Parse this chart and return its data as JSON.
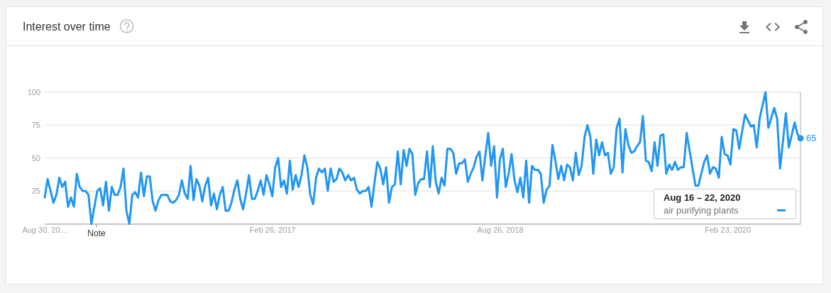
{
  "chart_data": {
    "type": "line",
    "title": "Interest over time",
    "x": [
      "2015-08-30",
      "2015-09-06",
      "2015-09-20",
      "2015-09-27",
      "2015-10-04",
      "2015-10-11",
      "2015-10-18",
      "2015-10-25",
      "2015-11-01",
      "2015-11-08",
      "2015-11-15",
      "2015-11-22",
      "2015-11-29",
      "2015-12-06",
      "2015-12-13",
      "2015-12-20",
      "2016-01-03",
      "2016-01-10",
      "2016-01-17",
      "2016-01-24",
      "2016-01-31",
      "2016-02-07",
      "2016-02-14",
      "2016-02-21",
      "2016-02-28",
      "2016-03-06",
      "2016-03-13",
      "2016-03-20",
      "2016-03-27",
      "2016-04-03",
      "2016-04-10",
      "2016-04-17",
      "2016-04-24",
      "2016-05-01",
      "2016-05-08",
      "2016-05-15",
      "2016-05-22",
      "2016-05-29",
      "2016-06-05",
      "2016-06-12",
      "2016-06-19",
      "2016-06-26",
      "2016-07-03",
      "2016-07-10",
      "2016-07-17",
      "2016-07-24",
      "2016-07-31",
      "2016-08-07",
      "2016-08-14",
      "2016-08-21",
      "2016-08-28",
      "2016-09-04",
      "2016-09-11",
      "2016-09-18",
      "2016-09-25",
      "2016-10-02",
      "2016-10-09",
      "2016-10-16",
      "2016-10-23",
      "2016-10-30",
      "2016-11-06",
      "2016-11-13",
      "2016-11-20",
      "2016-11-27",
      "2016-12-04",
      "2016-12-11",
      "2016-12-18",
      "2016-12-25",
      "2017-01-01",
      "2017-01-08",
      "2017-01-15",
      "2017-01-22",
      "2017-01-29",
      "2017-02-05",
      "2017-02-12",
      "2017-02-19",
      "2017-02-26",
      "2017-03-05",
      "2017-03-12",
      "2017-03-19",
      "2017-03-26",
      "2017-04-02",
      "2017-04-09",
      "2017-04-16",
      "2017-04-23",
      "2017-04-30",
      "2017-05-07",
      "2017-05-14",
      "2017-05-21",
      "2017-05-28",
      "2017-06-04",
      "2017-06-11",
      "2017-06-18",
      "2017-06-25",
      "2017-07-02",
      "2017-07-09",
      "2017-07-16",
      "2017-07-23",
      "2017-07-30",
      "2017-08-06",
      "2017-08-13",
      "2017-08-20",
      "2017-08-27",
      "2017-09-03",
      "2017-09-10",
      "2017-09-17",
      "2017-09-24",
      "2017-10-01",
      "2017-10-08",
      "2017-10-15",
      "2017-10-22",
      "2017-10-29",
      "2017-11-05",
      "2017-11-12",
      "2017-11-19",
      "2017-11-26",
      "2017-12-03",
      "2017-12-10",
      "2017-12-17",
      "2017-12-24",
      "2017-12-31",
      "2018-01-07",
      "2018-01-14",
      "2018-01-21",
      "2018-01-28",
      "2018-02-04",
      "2018-02-11",
      "2018-02-18",
      "2018-02-25",
      "2018-03-04",
      "2018-03-11",
      "2018-03-18",
      "2018-03-25",
      "2018-04-01",
      "2018-04-08",
      "2018-04-15",
      "2018-04-22",
      "2018-04-29",
      "2018-05-06",
      "2018-05-13",
      "2018-05-20",
      "2018-05-27",
      "2018-06-03",
      "2018-06-10",
      "2018-06-17",
      "2018-06-24",
      "2018-07-01",
      "2018-07-08",
      "2018-07-15",
      "2018-07-22",
      "2018-07-29",
      "2018-08-05",
      "2018-08-12",
      "2018-08-19",
      "2018-08-26",
      "2018-09-02",
      "2018-09-09",
      "2018-09-16",
      "2018-09-23",
      "2018-09-30",
      "2018-10-07",
      "2018-10-14",
      "2018-10-21",
      "2018-10-28",
      "2018-11-04",
      "2018-11-11",
      "2018-11-18",
      "2018-11-25",
      "2018-12-02",
      "2018-12-09",
      "2018-12-16",
      "2018-12-23",
      "2018-12-30",
      "2019-01-06",
      "2019-01-13",
      "2019-01-20",
      "2019-01-27",
      "2019-02-03",
      "2019-02-10",
      "2019-02-17",
      "2019-02-24",
      "2019-03-03",
      "2019-03-10",
      "2019-03-17",
      "2019-03-24",
      "2019-03-31",
      "2019-04-07",
      "2019-04-14",
      "2019-04-21",
      "2019-04-28",
      "2019-05-05",
      "2019-05-12",
      "2019-05-19",
      "2019-05-26",
      "2019-06-02",
      "2019-06-09",
      "2019-06-16",
      "2019-06-23",
      "2019-06-30",
      "2019-07-07",
      "2019-07-14",
      "2019-07-21",
      "2019-07-28",
      "2019-08-04",
      "2019-08-11",
      "2019-08-18",
      "2019-08-25",
      "2019-09-01",
      "2019-09-08",
      "2019-09-15",
      "2019-09-22",
      "2019-09-29",
      "2019-10-06",
      "2019-10-13",
      "2019-10-20",
      "2019-10-27",
      "2019-11-03",
      "2019-11-10",
      "2019-11-17",
      "2019-12-08",
      "2019-12-15",
      "2019-12-22",
      "2019-12-29",
      "2020-01-05",
      "2020-01-12",
      "2020-01-19",
      "2020-01-26",
      "2020-02-02",
      "2020-02-09",
      "2020-02-16",
      "2020-02-23",
      "2020-03-01",
      "2020-03-08",
      "2020-03-15",
      "2020-03-22",
      "2020-04-05",
      "2020-04-19",
      "2020-04-26",
      "2020-05-03",
      "2020-05-10",
      "2020-05-24",
      "2020-05-31",
      "2020-06-14",
      "2020-06-21",
      "2020-06-28",
      "2020-07-12",
      "2020-07-19",
      "2020-08-02",
      "2020-08-09",
      "2020-08-16"
    ],
    "series": [
      {
        "name": "air purifying plants",
        "color": "#2196f3",
        "values": [
          20,
          34,
          16,
          22,
          35,
          28,
          32,
          13,
          20,
          13,
          38,
          28,
          25,
          25,
          22,
          0,
          25,
          27,
          14,
          32,
          10,
          28,
          22,
          22,
          28,
          42,
          10,
          0,
          22,
          24,
          20,
          39,
          21,
          36,
          36,
          17,
          10,
          18,
          22,
          22,
          22,
          17,
          16,
          18,
          22,
          33,
          23,
          19,
          44,
          18,
          34,
          29,
          17,
          29,
          35,
          14,
          23,
          11,
          22,
          28,
          10,
          10,
          16,
          26,
          33,
          19,
          11,
          23,
          37,
          19,
          19,
          25,
          33,
          22,
          37,
          30,
          21,
          43,
          50,
          28,
          33,
          23,
          48,
          26,
          37,
          28,
          37,
          52,
          43,
          22,
          15,
          35,
          42,
          39,
          42,
          25,
          42,
          32,
          34,
          42,
          39,
          33,
          37,
          33,
          35,
          26,
          23,
          25,
          25,
          28,
          13,
          31,
          47,
          42,
          30,
          43,
          16,
          28,
          30,
          55,
          30,
          56,
          44,
          57,
          53,
          22,
          31,
          34,
          34,
          55,
          28,
          59,
          32,
          23,
          35,
          29,
          57,
          57,
          54,
          38,
          46,
          46,
          49,
          32,
          38,
          43,
          51,
          55,
          33,
          52,
          69,
          44,
          59,
          20,
          49,
          57,
          28,
          38,
          53,
          33,
          24,
          35,
          20,
          48,
          16,
          44,
          41,
          41,
          38,
          16,
          26,
          29,
          60,
          48,
          34,
          44,
          33,
          45,
          43,
          33,
          54,
          37,
          44,
          66,
          75,
          66,
          38,
          64,
          52,
          62,
          52,
          54,
          38,
          43,
          73,
          80,
          39,
          72,
          60,
          54,
          55,
          59,
          62,
          82,
          48,
          47,
          40,
          62,
          44,
          67,
          68,
          38,
          45,
          41,
          47,
          41,
          43,
          43,
          69,
          29,
          29,
          38,
          47,
          52,
          38,
          43,
          42,
          35,
          66,
          53,
          52,
          45,
          72,
          71,
          57,
          83,
          74,
          75,
          58,
          80,
          100,
          73,
          88,
          80,
          42,
          84,
          58,
          77,
          68,
          65
        ],
        "value_labels": [
          null,
          null,
          null,
          null,
          null,
          null,
          null,
          null,
          null,
          null,
          null,
          null,
          null,
          null,
          null,
          null,
          null,
          null,
          null,
          null,
          null,
          null,
          null,
          null,
          null,
          null,
          null,
          null,
          null,
          null,
          null,
          null,
          null,
          null,
          null,
          null,
          null,
          null,
          null,
          null,
          null,
          null,
          null,
          null,
          null,
          null,
          null,
          null,
          null,
          null,
          null,
          null,
          null,
          null,
          null,
          null,
          null,
          null,
          null,
          null,
          null,
          null,
          null,
          null,
          null,
          null,
          null,
          null,
          null,
          null,
          null,
          null,
          null,
          null,
          null,
          null,
          null,
          null,
          null,
          null,
          null,
          null,
          null,
          null,
          null,
          null,
          null,
          null,
          null,
          null,
          null,
          null,
          null,
          null,
          null,
          null,
          null,
          null,
          null,
          null,
          null,
          null,
          null,
          null,
          null,
          null,
          null,
          null,
          null,
          null,
          null,
          null,
          null,
          null,
          null,
          null,
          null,
          null,
          null,
          null,
          null,
          null,
          null,
          null,
          null,
          null,
          null,
          null,
          null,
          null,
          null,
          null,
          null,
          null,
          null,
          null,
          null,
          null,
          null,
          null,
          null,
          null,
          null,
          null,
          null,
          null,
          null,
          null,
          null,
          null,
          null,
          null,
          null,
          null,
          null,
          null,
          null,
          null,
          null,
          null,
          null,
          null,
          null,
          null,
          null,
          null,
          null,
          null,
          null,
          null,
          null,
          null,
          null,
          null,
          null,
          null,
          null,
          null,
          null,
          null,
          null,
          null,
          null,
          null,
          null,
          null,
          null,
          null,
          null,
          null,
          null,
          null,
          null,
          null,
          null,
          null,
          null,
          null,
          null,
          null,
          null,
          null,
          null,
          null,
          null,
          null,
          null,
          null,
          null,
          null,
          null,
          null,
          null,
          null,
          null,
          null,
          null,
          null,
          null,
          null,
          null,
          null,
          null,
          null,
          null,
          null,
          null,
          null,
          null,
          null,
          null,
          null,
          null,
          null,
          null,
          null,
          null,
          null,
          null,
          null,
          null,
          null,
          null,
          null,
          null,
          null,
          null,
          null,
          null,
          "65"
        ]
      }
    ],
    "xlim": [
      "2015-08-30",
      "2020-08-16"
    ],
    "xticks": [
      {
        "value": "2015-08-30",
        "label": "Aug 30, 20…"
      },
      {
        "value": "2017-02-26",
        "label": "Feb 26, 2017"
      },
      {
        "value": "2018-08-26",
        "label": "Aug 26, 2018"
      },
      {
        "value": "2020-02-23",
        "label": "Feb 23, 2020"
      }
    ],
    "ylim": [
      0,
      100
    ],
    "yticks": [
      {
        "value": 0,
        "label": null
      },
      25,
      50,
      75,
      100
    ],
    "grid": "y",
    "ref_lines": [
      {
        "axis": "x",
        "value": "2020-08-16",
        "color": "#c8c8c8"
      }
    ],
    "annotations": [
      "Note",
      "Aug 16 – 22, 2020"
    ]
  }
}
